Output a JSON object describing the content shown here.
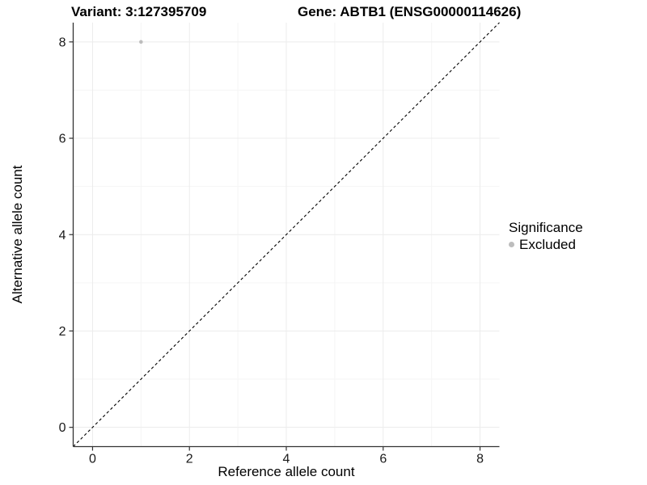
{
  "titles": {
    "left": "Variant: 3:127395709",
    "right": "Gene: ABTB1 (ENSG00000114626)"
  },
  "chart_data": {
    "type": "scatter",
    "xlabel": "Reference allele count",
    "ylabel": "Alternative allele count",
    "xlim": [
      -0.4,
      8.4
    ],
    "ylim": [
      -0.4,
      8.4
    ],
    "xticks": [
      0,
      2,
      4,
      6,
      8
    ],
    "yticks": [
      0,
      2,
      4,
      6,
      8
    ],
    "minor_xticks": [
      1,
      3,
      5,
      7
    ],
    "minor_yticks": [
      1,
      3,
      5,
      7
    ],
    "grid": true,
    "points": [
      {
        "x": 1,
        "y": 8,
        "series": "Excluded"
      }
    ],
    "reference_line": {
      "equation": "y = x",
      "style": "dashed",
      "color": "#000000"
    },
    "legend": {
      "title": "Significance",
      "position": "right",
      "items": [
        {
          "label": "Excluded",
          "color": "#bdbdbd"
        }
      ]
    }
  },
  "colors": {
    "background": "#ffffff",
    "point": "#bdbdbd",
    "grid_major": "#ececec",
    "grid_minor": "#f5f5f5",
    "axis_line": "#333333",
    "tick_label": "#1a1a1a"
  }
}
